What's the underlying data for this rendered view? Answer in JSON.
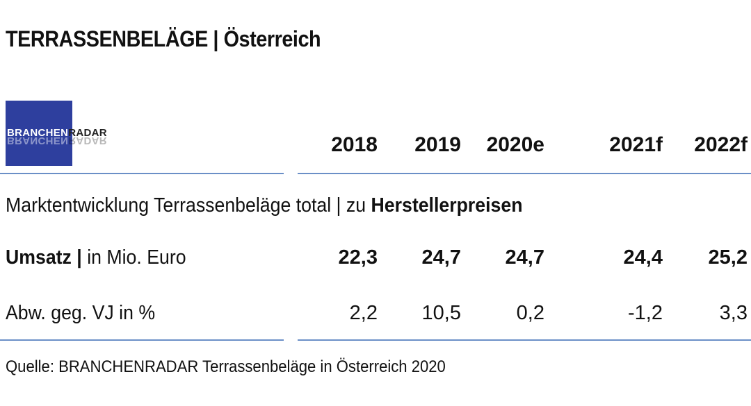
{
  "title": "TERRASSENBELÄGE | Österreich",
  "logo": {
    "part1": "BRANCHEN",
    "part2": "RADAR"
  },
  "years": [
    "2018",
    "2019",
    "2020e",
    "2021f",
    "2022f"
  ],
  "section": {
    "text": "Marktentwicklung Terrassenbeläge total | zu ",
    "bold": "Herstellerpreisen"
  },
  "rows": [
    {
      "label_bold": "Umsatz |",
      "label_rest": " in Mio. Euro",
      "values": [
        "22,3",
        "24,7",
        "24,7",
        "24,4",
        "25,2"
      ]
    },
    {
      "label_bold": "",
      "label_rest": "Abw. geg. VJ in %",
      "values": [
        "2,2",
        "10,5",
        "0,2",
        "-1,2",
        "3,3"
      ]
    }
  ],
  "source": "Quelle: BRANCHENRADAR Terrassenbeläge in Österreich 2020",
  "colors": {
    "logo_bg": "#2e3f9e",
    "rule": "#6b8fc7"
  }
}
